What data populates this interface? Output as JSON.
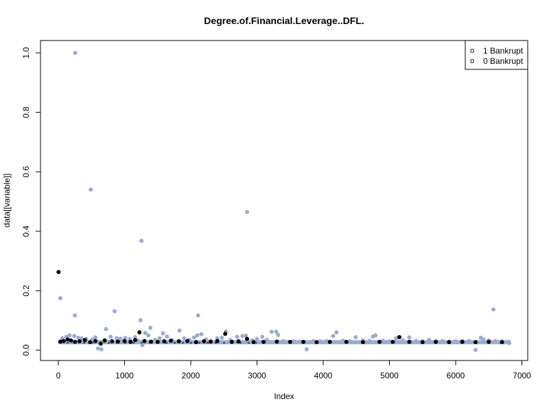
{
  "chart_data": {
    "type": "scatter",
    "title": "Degree.of.Financial.Leverage..DFL.",
    "xlabel": "Index",
    "ylabel": "data[[variable]]",
    "xlim": [
      0,
      7000
    ],
    "ylim": [
      0,
      1.0
    ],
    "x_ticks": [
      0,
      1000,
      2000,
      3000,
      4000,
      5000,
      6000,
      7000
    ],
    "y_ticks": [
      0.0,
      0.2,
      0.4,
      0.6,
      0.8,
      1.0
    ],
    "y_tick_labels": [
      "0.0",
      "0.2",
      "0.4",
      "0.6",
      "0.8",
      "1.0"
    ],
    "legend": {
      "position": "top-right",
      "entries": [
        {
          "symbol": "o",
          "label": "1 Bankrupt"
        },
        {
          "symbol": "o",
          "label": "0 Bankrupt"
        }
      ]
    },
    "colors": {
      "bankrupt_1": "#000000",
      "bankrupt_0": "#9aadcf"
    },
    "baseline": {
      "value": 0.0268,
      "x_range": [
        0,
        6819
      ]
    },
    "series": [
      {
        "label": "1 Bankrupt",
        "color": "#000000",
        "points": [
          [
            3,
            0.263
          ],
          [
            30,
            0.029
          ],
          [
            80,
            0.031
          ],
          [
            140,
            0.036
          ],
          [
            190,
            0.033
          ],
          [
            250,
            0.028
          ],
          [
            320,
            0.03
          ],
          [
            400,
            0.034
          ],
          [
            480,
            0.027
          ],
          [
            560,
            0.031
          ],
          [
            640,
            0.022
          ],
          [
            700,
            0.033
          ],
          [
            810,
            0.03
          ],
          [
            900,
            0.029
          ],
          [
            1000,
            0.031
          ],
          [
            1090,
            0.028
          ],
          [
            1160,
            0.034
          ],
          [
            1225,
            0.06
          ],
          [
            1300,
            0.031
          ],
          [
            1400,
            0.029
          ],
          [
            1500,
            0.028
          ],
          [
            1600,
            0.03
          ],
          [
            1700,
            0.032
          ],
          [
            1820,
            0.03
          ],
          [
            1950,
            0.031
          ],
          [
            2080,
            0.027
          ],
          [
            2200,
            0.03
          ],
          [
            2300,
            0.029
          ],
          [
            2400,
            0.031
          ],
          [
            2520,
            0.055
          ],
          [
            2620,
            0.028
          ],
          [
            2720,
            0.03
          ],
          [
            2850,
            0.038
          ],
          [
            2950,
            0.027
          ],
          [
            3100,
            0.028
          ],
          [
            3300,
            0.029
          ],
          [
            3500,
            0.028
          ],
          [
            3700,
            0.028
          ],
          [
            3900,
            0.027
          ],
          [
            4100,
            0.028
          ],
          [
            4350,
            0.028
          ],
          [
            4600,
            0.027
          ],
          [
            4850,
            0.028
          ],
          [
            5050,
            0.028
          ],
          [
            5150,
            0.044
          ],
          [
            5300,
            0.028
          ],
          [
            5500,
            0.027
          ],
          [
            5700,
            0.028
          ],
          [
            5900,
            0.027
          ],
          [
            6100,
            0.028
          ],
          [
            6300,
            0.027
          ],
          [
            6500,
            0.028
          ],
          [
            6700,
            0.027
          ]
        ]
      },
      {
        "label": "0 Bankrupt",
        "color": "#9aadcf",
        "points": [
          [
            30,
            0.175
          ],
          [
            255,
            1.0
          ],
          [
            250,
            0.117
          ],
          [
            490,
            0.54
          ],
          [
            850,
            0.131
          ],
          [
            1255,
            0.368
          ],
          [
            1240,
            0.101
          ],
          [
            2110,
            0.117
          ],
          [
            2850,
            0.465
          ],
          [
            6570,
            0.137
          ],
          [
            60,
            0.04
          ],
          [
            120,
            0.045
          ],
          [
            170,
            0.05
          ],
          [
            240,
            0.048
          ],
          [
            300,
            0.042
          ],
          [
            350,
            0.04
          ],
          [
            420,
            0.038
          ],
          [
            510,
            0.036
          ],
          [
            560,
            0.043
          ],
          [
            600,
            0.006
          ],
          [
            650,
            0.003
          ],
          [
            720,
            0.071
          ],
          [
            790,
            0.045
          ],
          [
            880,
            0.04
          ],
          [
            940,
            0.038
          ],
          [
            1010,
            0.041
          ],
          [
            1080,
            0.037
          ],
          [
            1160,
            0.044
          ],
          [
            1200,
            0.032
          ],
          [
            1270,
            0.017
          ],
          [
            1310,
            0.058
          ],
          [
            1360,
            0.05
          ],
          [
            1390,
            0.075
          ],
          [
            1460,
            0.035
          ],
          [
            1530,
            0.04
          ],
          [
            1580,
            0.057
          ],
          [
            1640,
            0.046
          ],
          [
            1720,
            0.033
          ],
          [
            1830,
            0.066
          ],
          [
            1900,
            0.04
          ],
          [
            1980,
            0.035
          ],
          [
            2050,
            0.043
          ],
          [
            2100,
            0.05
          ],
          [
            2160,
            0.054
          ],
          [
            2230,
            0.036
          ],
          [
            2300,
            0.03
          ],
          [
            2400,
            0.04
          ],
          [
            2470,
            0.042
          ],
          [
            2530,
            0.063
          ],
          [
            2600,
            0.034
          ],
          [
            2700,
            0.045
          ],
          [
            2780,
            0.048
          ],
          [
            2830,
            0.049
          ],
          [
            2930,
            0.033
          ],
          [
            3000,
            0.038
          ],
          [
            3080,
            0.045
          ],
          [
            3150,
            0.035
          ],
          [
            3220,
            0.062
          ],
          [
            3290,
            0.062
          ],
          [
            3320,
            0.051
          ],
          [
            3400,
            0.031
          ],
          [
            3550,
            0.03
          ],
          [
            3650,
            0.029
          ],
          [
            3750,
            0.003
          ],
          [
            3850,
            0.031
          ],
          [
            3950,
            0.03
          ],
          [
            4050,
            0.031
          ],
          [
            4150,
            0.048
          ],
          [
            4200,
            0.06
          ],
          [
            4300,
            0.032
          ],
          [
            4400,
            0.03
          ],
          [
            4490,
            0.044
          ],
          [
            4600,
            0.033
          ],
          [
            4700,
            0.031
          ],
          [
            4750,
            0.046
          ],
          [
            4790,
            0.05
          ],
          [
            4900,
            0.032
          ],
          [
            5000,
            0.03
          ],
          [
            5100,
            0.04
          ],
          [
            5200,
            0.033
          ],
          [
            5300,
            0.043
          ],
          [
            5400,
            0.031
          ],
          [
            5500,
            0.03
          ],
          [
            5600,
            0.035
          ],
          [
            5700,
            0.03
          ],
          [
            5800,
            0.031
          ],
          [
            5900,
            0.029
          ],
          [
            6000,
            0.03
          ],
          [
            6100,
            0.031
          ],
          [
            6200,
            0.031
          ],
          [
            6300,
            0.001
          ],
          [
            6380,
            0.042
          ],
          [
            6420,
            0.036
          ],
          [
            6500,
            0.033
          ],
          [
            6600,
            0.031
          ],
          [
            6700,
            0.03
          ],
          [
            6800,
            0.029
          ],
          [
            6810,
            0.024
          ]
        ]
      }
    ]
  }
}
